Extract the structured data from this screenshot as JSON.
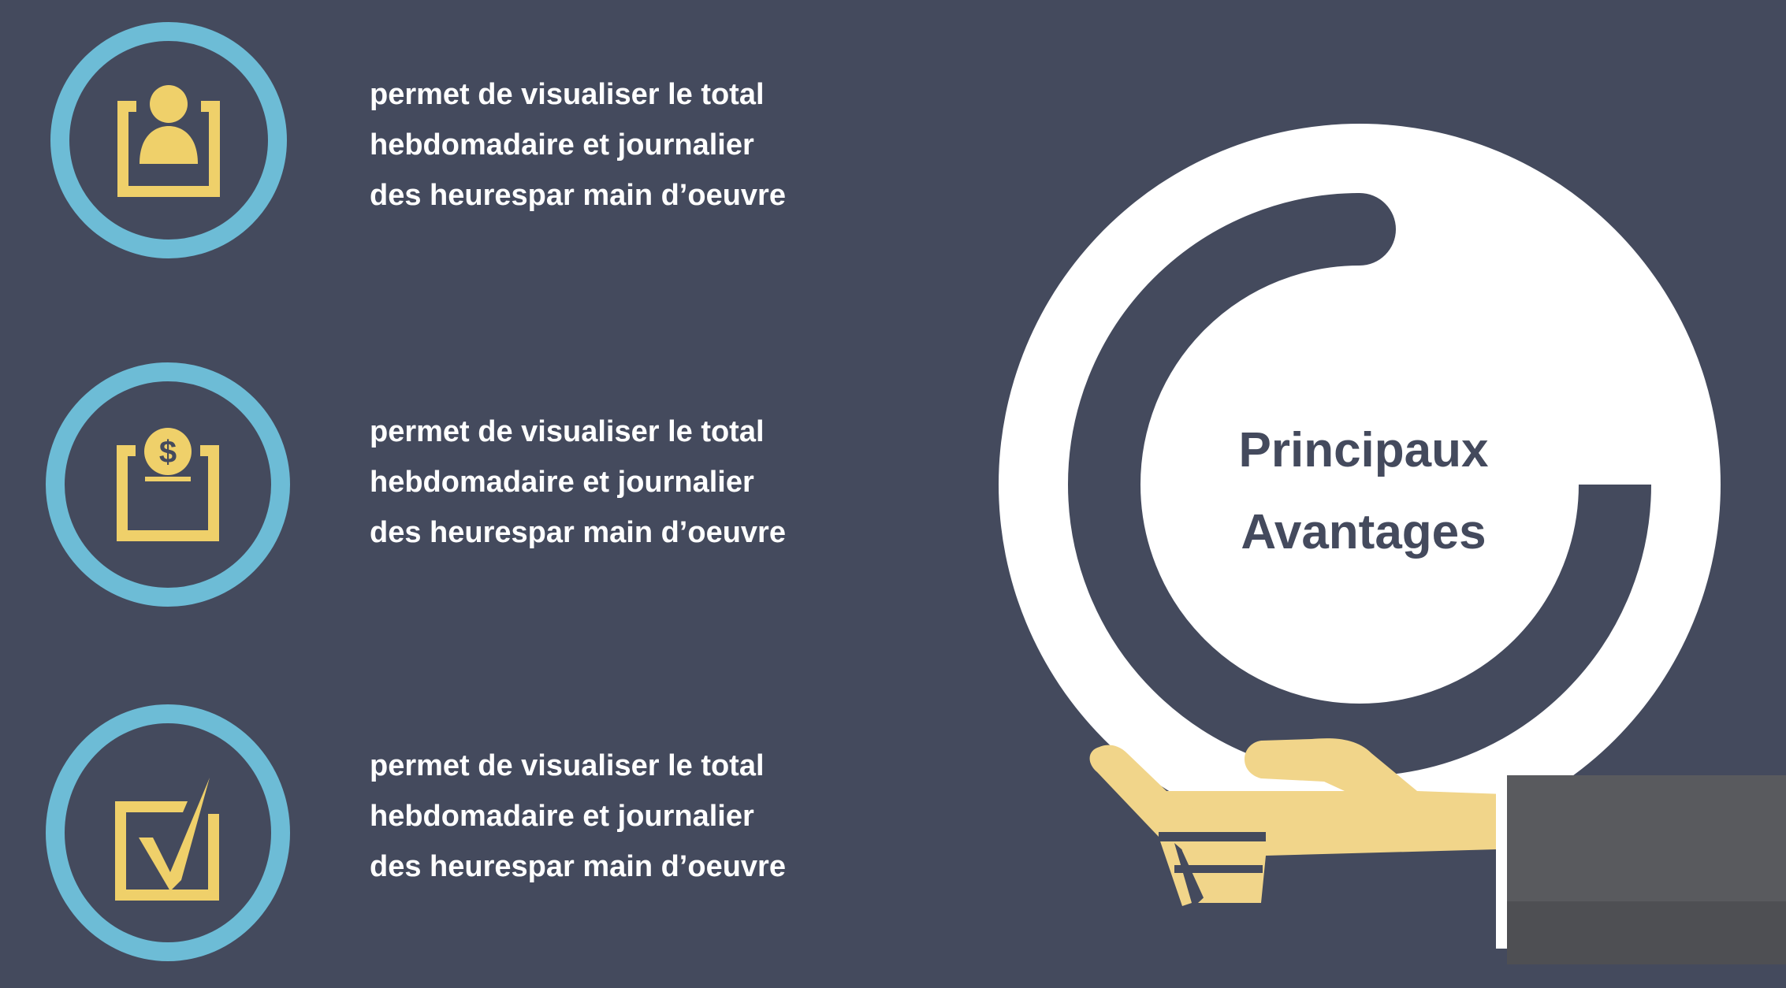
{
  "headline": {
    "line1": "Principaux",
    "line2": "Avantages"
  },
  "features": [
    {
      "icon": "user-clipboard-icon",
      "lines": [
        "permet de visualiser le total",
        "hebdomadaire et journalier",
        "des heurespar main d’oeuvre"
      ]
    },
    {
      "icon": "money-clipboard-icon",
      "lines": [
        "permet de visualiser le total",
        "hebdomadaire et journalier",
        "des heurespar main d’oeuvre"
      ]
    },
    {
      "icon": "checkbox-icon",
      "lines": [
        "permet de visualiser le total",
        "hebdomadaire et journalier",
        "des heurespar main d’oeuvre"
      ]
    }
  ],
  "colors": {
    "background": "#444a5d",
    "ring": "#6dbcd6",
    "icon": "#efd06a",
    "circle": "#ffffff",
    "hand": "#f1d58a",
    "sleeve": "#57585c"
  }
}
